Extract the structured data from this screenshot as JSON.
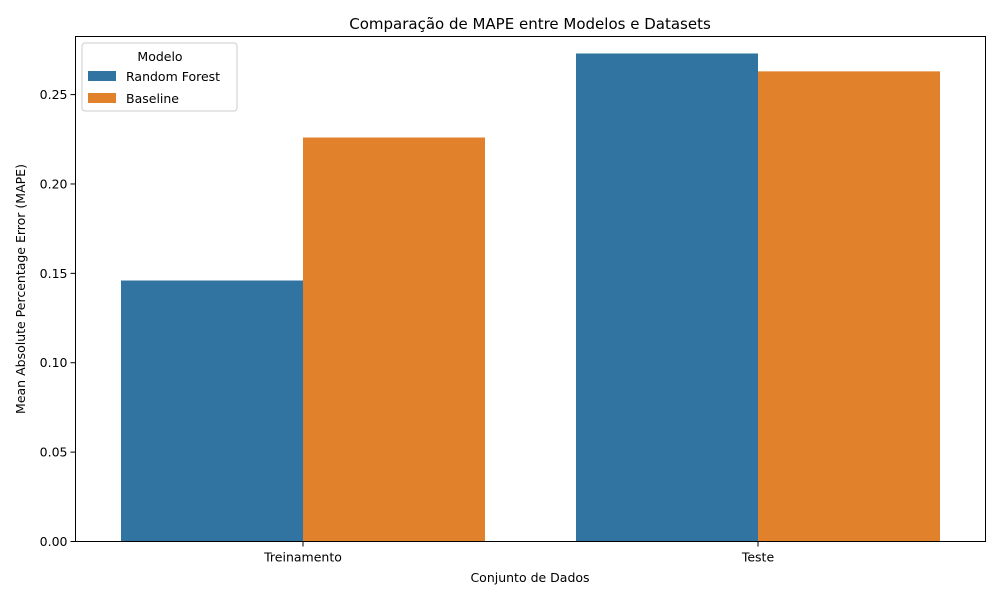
{
  "chart_data": {
    "type": "bar",
    "title": "Comparação de MAPE entre Modelos e Datasets",
    "xlabel": "Conjunto de Dados",
    "ylabel": "Mean Absolute Percentage Error (MAPE)",
    "categories": [
      "Treinamento",
      "Teste"
    ],
    "series": [
      {
        "name": "Random Forest",
        "color": "#3274a1",
        "values": [
          0.146,
          0.273
        ]
      },
      {
        "name": "Baseline",
        "color": "#e1812c",
        "values": [
          0.226,
          0.263
        ]
      }
    ],
    "ylim": [
      0,
      0.2825
    ],
    "yticks": [
      "0.00",
      "0.05",
      "0.10",
      "0.15",
      "0.20",
      "0.25"
    ],
    "grid": false,
    "legend": {
      "title": "Modelo",
      "placement": "top-left"
    }
  }
}
